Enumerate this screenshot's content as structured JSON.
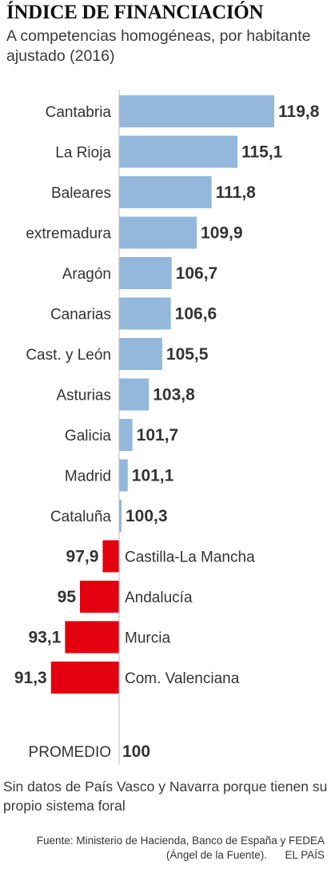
{
  "title": "ÍNDICE DE FINANCIACIÓN",
  "subtitle": "A competencias homogéneas, por habitante ajustado (2016)",
  "chart_data": {
    "type": "bar",
    "orientation": "horizontal",
    "baseline": 100,
    "categories": [
      "Cantabria",
      "La Rioja",
      "Baleares",
      "extremadura",
      "Aragón",
      "Canarias",
      "Cast. y León",
      "Asturias",
      "Galicia",
      "Madrid",
      "Cataluña",
      "Castilla-La Mancha",
      "Andalucía",
      "Murcia",
      "Com. Valenciana"
    ],
    "values": [
      119.8,
      115.1,
      111.8,
      109.9,
      106.7,
      106.6,
      105.5,
      103.8,
      101.7,
      101.1,
      100.3,
      97.9,
      95,
      93.1,
      91.3
    ],
    "labels": [
      "119,8",
      "115,1",
      "111,8",
      "109,9",
      "106,7",
      "106,6",
      "105,5",
      "103,8",
      "101,7",
      "101,1",
      "100,3",
      "97,9",
      "95",
      "93,1",
      "91,3"
    ],
    "colors": {
      "above": "#93b8dc",
      "below": "#e3000f"
    },
    "reference": {
      "label": "PROMEDIO",
      "value": "100"
    },
    "grid": false,
    "legend": "none"
  },
  "note": "Sin datos de País Vasco y Navarra porque tienen su propio sistema foral",
  "source": "Fuente: Ministerio de Hacienda, Banco de España y FEDEA (Ángel de la Fuente).",
  "credit": "EL PAÍS"
}
